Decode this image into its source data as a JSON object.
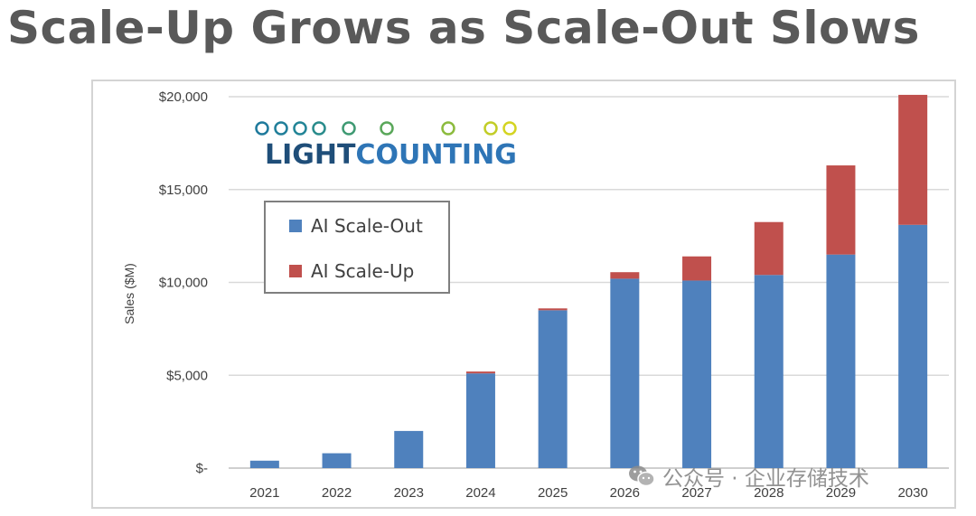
{
  "slide": {
    "title": "Scale-Up Grows as Scale-Out Slows"
  },
  "logo": {
    "text_part1": "LIGHT",
    "text_part2": "COUNTING"
  },
  "watermark": {
    "text": "公众号 · 企业存储技术",
    "icon": "wechat-icon"
  },
  "colors": {
    "scale_out": "#4f81bd",
    "scale_up": "#c0504d",
    "grid": "#d9d9d9",
    "axis": "#bfbfbf"
  },
  "chart_data": {
    "type": "bar",
    "stacked": true,
    "categories": [
      "2021",
      "2022",
      "2023",
      "2024",
      "2025",
      "2026",
      "2027",
      "2028",
      "2029",
      "2030"
    ],
    "series": [
      {
        "name": "AI Scale-Out",
        "values": [
          400,
          800,
          2000,
          5100,
          8500,
          10200,
          10100,
          10400,
          11500,
          13100
        ]
      },
      {
        "name": "AI Scale-Up",
        "values": [
          0,
          0,
          0,
          100,
          100,
          350,
          1300,
          2850,
          4800,
          7000
        ]
      }
    ],
    "ylabel": "Sales ($M)",
    "ylim": [
      0,
      20000
    ],
    "yticks": [
      0,
      5000,
      10000,
      15000,
      20000
    ],
    "ytick_labels": [
      "$-",
      "$5,000",
      "$10,000",
      "$15,000",
      "$20,000"
    ],
    "grid": true,
    "legend_position": "upper-left, inside"
  }
}
